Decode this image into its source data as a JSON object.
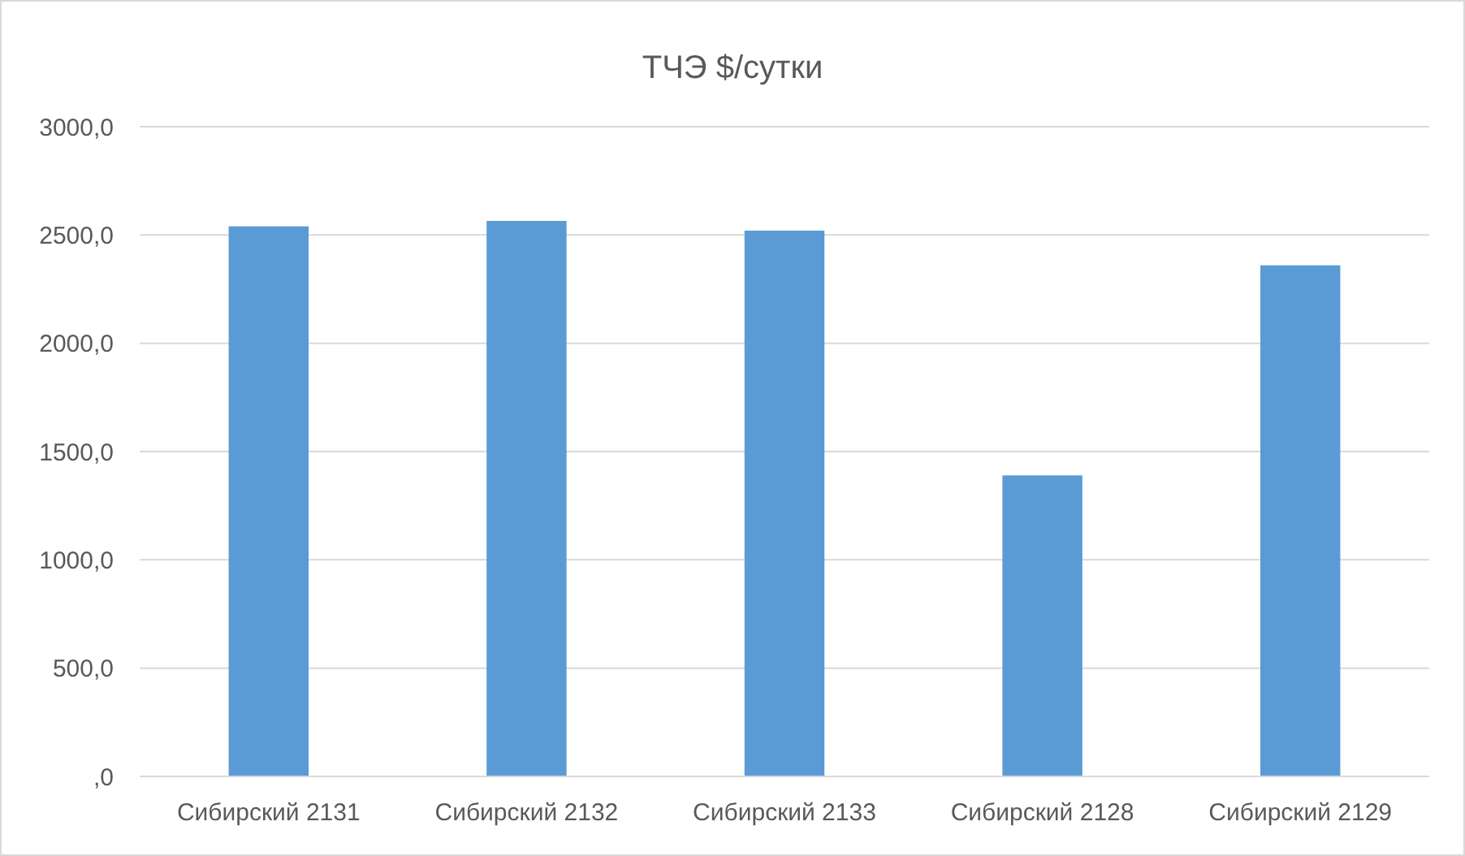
{
  "chart_data": {
    "type": "bar",
    "title": "ТЧЭ $/сутки",
    "categories": [
      "Сибирский 2131",
      "Сибирский 2132",
      "Сибирский 2133",
      "Сибирский 2128",
      "Сибирский 2129"
    ],
    "values": [
      2540,
      2565,
      2520,
      1390,
      2360
    ],
    "color": "#5b9bd5",
    "ylim": [
      0,
      3000
    ],
    "yticks": [
      {
        "value": 0,
        "label": ",0"
      },
      {
        "value": 500,
        "label": "500,0"
      },
      {
        "value": 1000,
        "label": "1000,0"
      },
      {
        "value": 1500,
        "label": "1500,0"
      },
      {
        "value": 2000,
        "label": "2000,0"
      },
      {
        "value": 2500,
        "label": "2500,0"
      },
      {
        "value": 3000,
        "label": "3000,0"
      }
    ],
    "grid": "y"
  }
}
